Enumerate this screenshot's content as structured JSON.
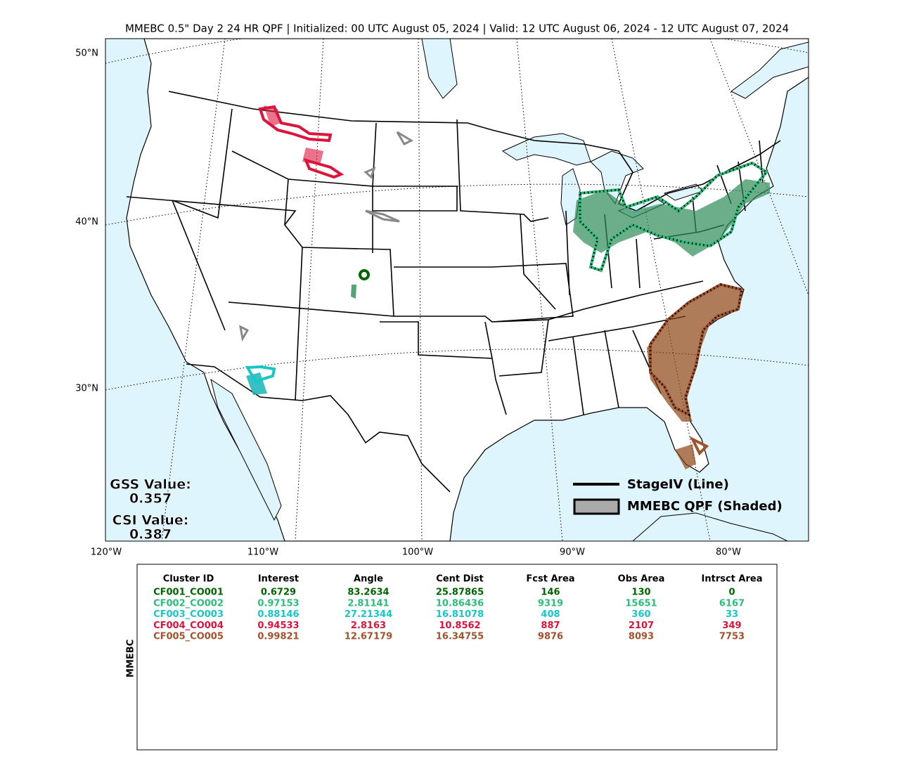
{
  "header": {
    "title": "MMEBC 0.5\" Day 2 24 HR QPF | Initialized: 00 UTC August 05, 2024 | Valid: 12 UTC August 06, 2024 - 12 UTC August 07, 2024"
  },
  "map": {
    "lat_labels": [
      "50°N",
      "40°N",
      "30°N"
    ],
    "lon_labels": [
      "120°W",
      "110°W",
      "100°W",
      "90°W",
      "80°W"
    ],
    "gss_label": "GSS Value:",
    "gss_value": "0.357",
    "csi_label": "CSI Value:",
    "csi_value": "0.387",
    "legend": [
      "StageIV (Line)",
      "MMEBC QPF (Shaded)"
    ]
  },
  "table": {
    "side_label": "MMEBC",
    "headers": [
      "Cluster ID",
      "Interest",
      "Angle",
      "Cent Dist",
      "Fcst Area",
      "Obs Area",
      "Intrsct Area"
    ],
    "rows": [
      [
        "CF001_CO001",
        "0.6729",
        "83.2634",
        "25.87865",
        "146",
        "130",
        "0"
      ],
      [
        "CF002_CO002",
        "0.97153",
        "2.81141",
        "10.86436",
        "9319",
        "15651",
        "6167"
      ],
      [
        "CF003_CO003",
        "0.88146",
        "27.21344",
        "16.81078",
        "408",
        "360",
        "33"
      ],
      [
        "CF004_CO004",
        "0.94533",
        "2.8163",
        "10.8562",
        "887",
        "2107",
        "349"
      ],
      [
        "CF005_CO005",
        "0.99821",
        "12.67179",
        "16.34755",
        "9876",
        "8093",
        "7753"
      ]
    ],
    "row_colors": [
      "#006400",
      "#2dbd7a",
      "#17c6c6",
      "#dc143c",
      "#a0522d"
    ]
  }
}
